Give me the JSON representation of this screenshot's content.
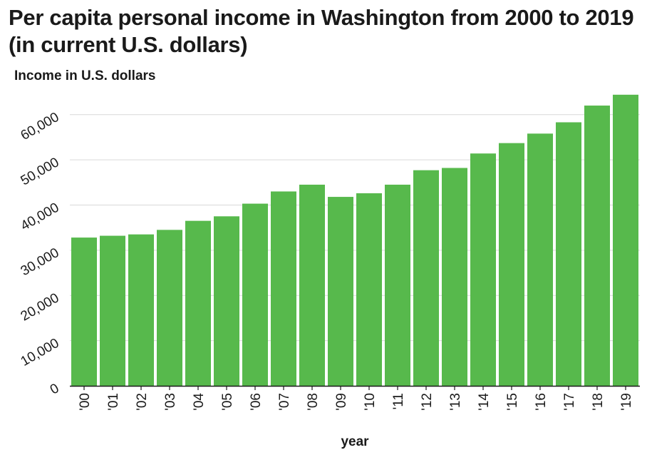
{
  "chart_data": {
    "type": "bar",
    "title": "Per capita personal income in Washington from 2000 to 2019 (in current U.S. dollars)",
    "xlabel": "year",
    "ylabel": "Income in U.S. dollars",
    "categories": [
      "'00",
      "'01",
      "'02",
      "'03",
      "'04",
      "'05",
      "'06",
      "'07",
      "'08",
      "'09",
      "'10",
      "'11",
      "'12",
      "'13",
      "'14",
      "'15",
      "'16",
      "'17",
      "'18",
      "'19"
    ],
    "values": [
      32800,
      33200,
      33500,
      34500,
      36500,
      37500,
      40300,
      43000,
      44500,
      41800,
      42600,
      44500,
      47700,
      48200,
      51400,
      53700,
      55800,
      58300,
      62000,
      64400
    ],
    "ylim": [
      0,
      68000
    ],
    "yticks": [
      0,
      10000,
      20000,
      30000,
      40000,
      50000,
      60000
    ],
    "ytick_labels": [
      "0",
      "10,000",
      "20,000",
      "30,000",
      "40,000",
      "50,000",
      "60,000"
    ],
    "grid": true,
    "legend": "none",
    "bar_color": "#57b94c",
    "grid_color": "#d9d9d9",
    "axis_color": "#1a1a1a"
  }
}
